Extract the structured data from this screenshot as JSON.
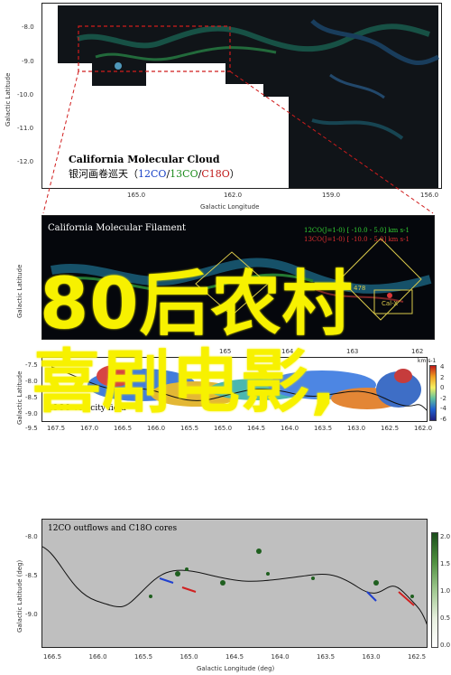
{
  "panel1": {
    "title": "California Molecular Cloud",
    "subtitle_cn": "银河画卷巡天（",
    "sub_12co": "12CO",
    "sub_sep1": "/",
    "sub_13co": "13CO",
    "sub_sep2": "/",
    "sub_c18o": "C18O",
    "sub_end": "）",
    "ylabel": "Galactic Latitude",
    "xlabel": "Galactic Longitude",
    "yticks": [
      "-8.0",
      "-9.0",
      "-10.0",
      "-11.0",
      "-12.0"
    ],
    "xticks": [
      "165.0",
      "162.0",
      "159.0",
      "156.0"
    ]
  },
  "panel2": {
    "title": "California Molecular Filament",
    "ylabel": "Galactic Latitude",
    "legend_1": "12CO(J=1-0) [ -10.0 - 5.0] km s-1",
    "legend_2": "13CO(J=1-0) [ -10.0 - 5.0] km s-1",
    "label_478": "478",
    "label_calx": "Cal-X",
    "xticks": [
      "165",
      "164",
      "163",
      "162"
    ]
  },
  "panel3": {
    "caption": "13CO velocity field",
    "ylabel": "Galactic Latitude",
    "units": "km s-1",
    "yticks": [
      "-7.5",
      "-8.0",
      "-8.5",
      "-9.0",
      "-9.5"
    ],
    "xticks": [
      "167.5",
      "167.0",
      "166.5",
      "166.0",
      "165.5",
      "165.0",
      "164.5",
      "164.0",
      "163.5",
      "163.0",
      "162.5",
      "162.0"
    ],
    "cbar_ticks": [
      "4",
      "2",
      "0",
      "-2",
      "-4",
      "-6"
    ]
  },
  "panel4": {
    "caption": "12CO outflows and C18O cores",
    "ylabel": "Galactic Latitude (deg)",
    "xlabel": "Galactic Longitude (deg)",
    "yticks": [
      "-8.0",
      "-8.5",
      "-9.0"
    ],
    "xticks": [
      "166.5",
      "166.0",
      "165.5",
      "165.0",
      "164.5",
      "164.0",
      "163.5",
      "163.0",
      "162.5"
    ],
    "cbar_ticks": [
      "2.0",
      "1.5",
      "1.0",
      "0.5",
      "0.0"
    ]
  },
  "overlay": {
    "line1": "80后农村",
    "line2": "喜剧电影,"
  },
  "colors": {
    "overlay_yellow": "#f7f100",
    "panel2_bg": "#05070c",
    "panel4_bg": "#bfbfbf",
    "dash_red": "#d01c1c"
  }
}
